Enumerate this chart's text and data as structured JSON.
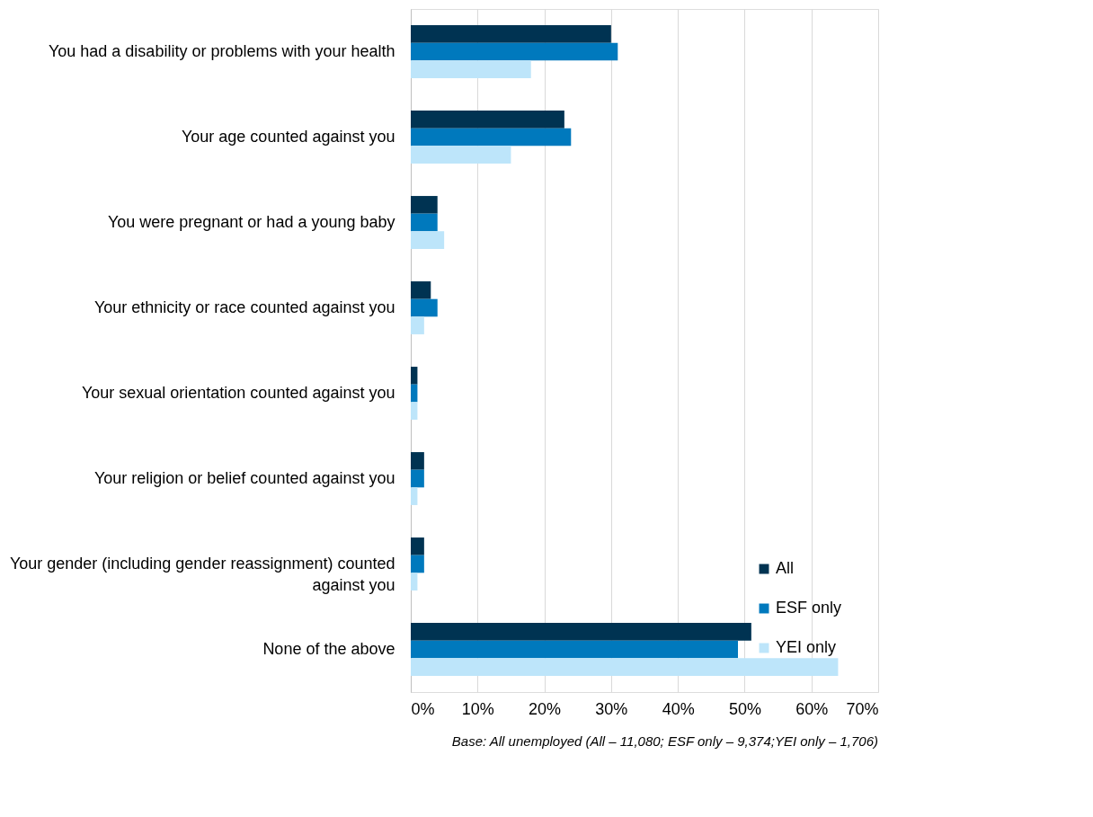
{
  "chart_data": {
    "type": "bar",
    "orientation": "horizontal",
    "categories": [
      "You had a disability or problems with your health",
      "Your age counted against you",
      "You were pregnant or had a young baby",
      "Your ethnicity or race counted against you",
      "Your sexual orientation counted against you",
      "Your religion or belief counted against you",
      "Your gender (including gender reassignment) counted against you",
      "None of the above"
    ],
    "series": [
      {
        "name": "All",
        "color": "#003352",
        "values": [
          30,
          23,
          4,
          3,
          1,
          2,
          2,
          51
        ]
      },
      {
        "name": "ESF only",
        "color": "#0079bd",
        "values": [
          31,
          24,
          4,
          4,
          1,
          2,
          2,
          49
        ]
      },
      {
        "name": "YEI only",
        "color": "#bde5fa",
        "values": [
          18,
          15,
          5,
          2,
          1,
          1,
          1,
          64
        ]
      }
    ],
    "xlim": [
      0,
      70
    ],
    "xticks": [
      {
        "value": 0,
        "label": "0%"
      },
      {
        "value": 10,
        "label": "10%"
      },
      {
        "value": 20,
        "label": "20%"
      },
      {
        "value": 30,
        "label": "30%"
      },
      {
        "value": 40,
        "label": "40%"
      },
      {
        "value": 50,
        "label": "50%"
      },
      {
        "value": 60,
        "label": "60%"
      },
      {
        "value": 70,
        "label": "70%"
      }
    ],
    "grid": "x",
    "legend": "bottom right",
    "annotations": [
      "Base: All unemployed (All – 11,080; ESF only – 9,374;YEI only – 1,706)"
    ]
  }
}
